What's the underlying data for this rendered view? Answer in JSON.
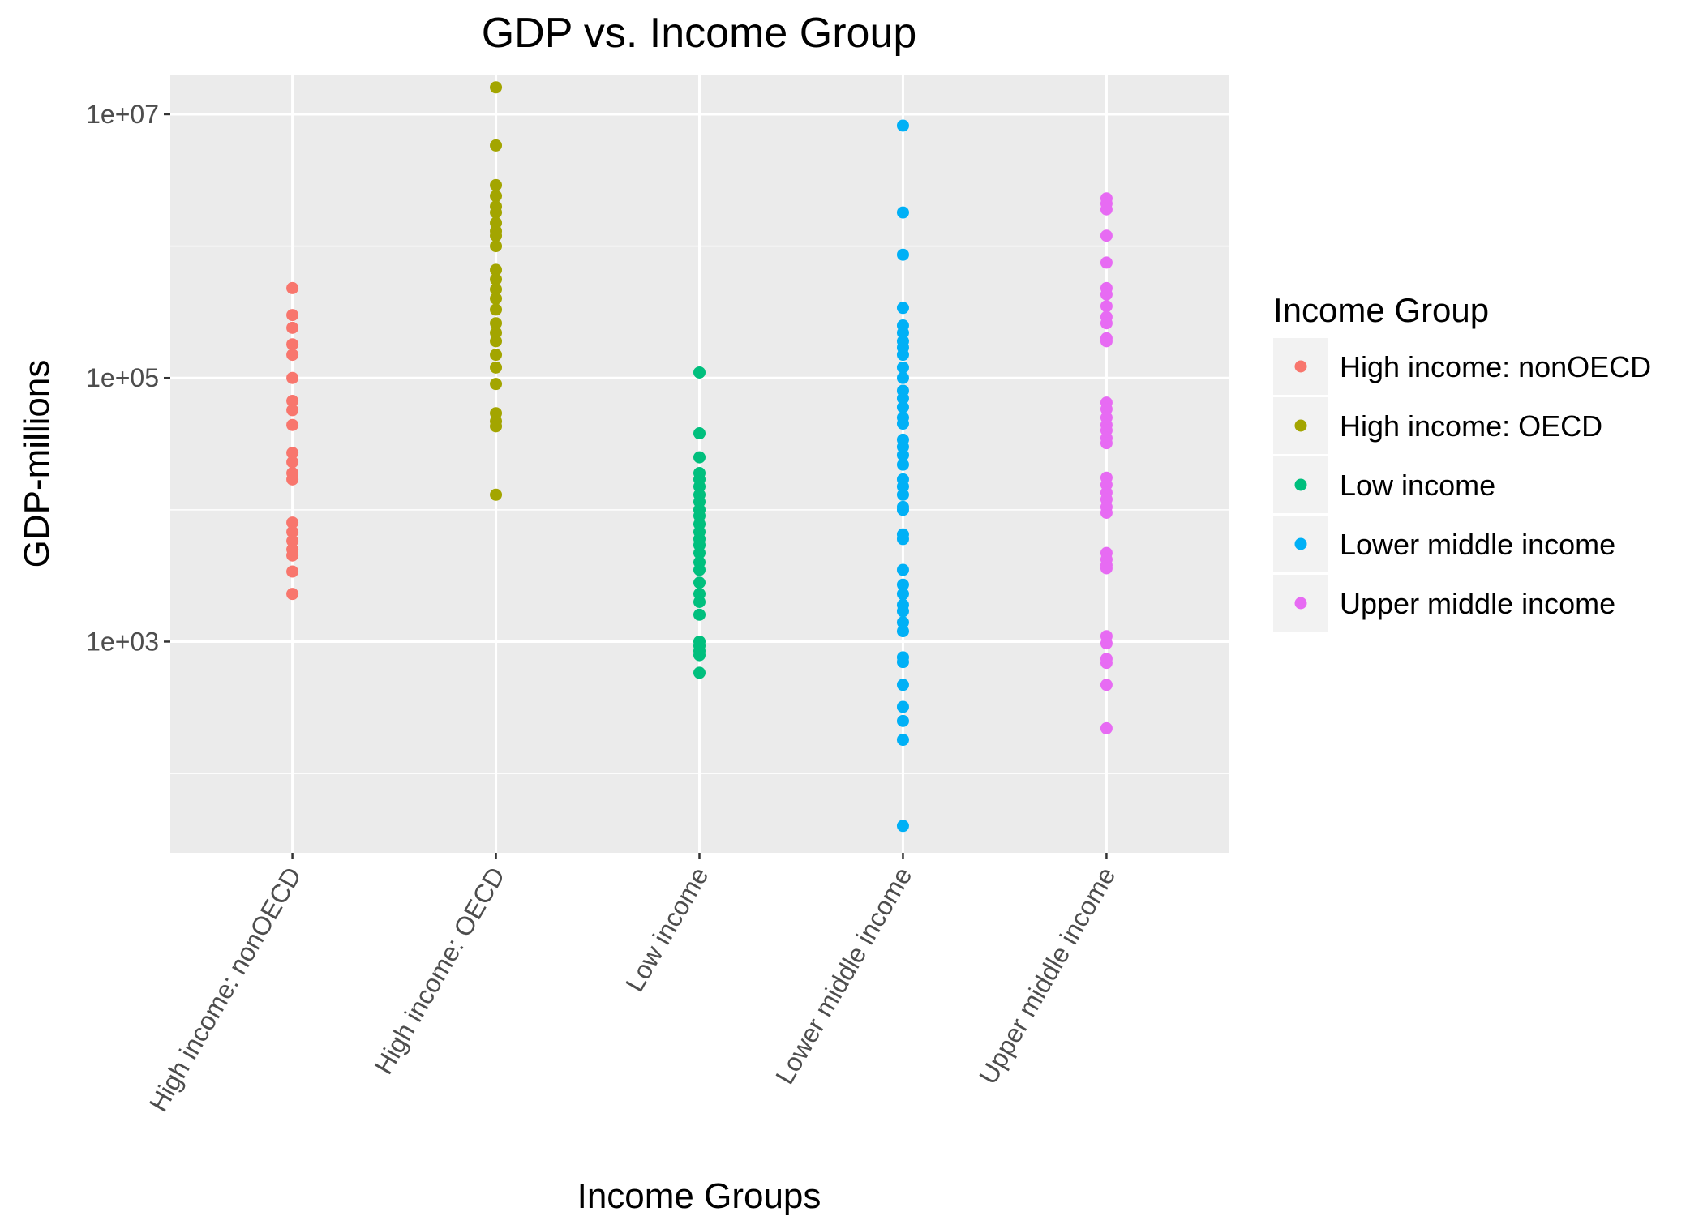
{
  "chart_data": {
    "type": "scatter",
    "title": "GDP vs. Income Group",
    "xlabel": "Income Groups",
    "ylabel": "GDP-millions",
    "y_scale": "log10",
    "categories": [
      "High income: nonOECD",
      "High income: OECD",
      "Low income",
      "Lower middle income",
      "Upper middle income"
    ],
    "y_ticks": [
      1000,
      100000,
      10000000
    ],
    "y_tick_labels": [
      "1e+03",
      "1e+05",
      "1e+07"
    ],
    "ylim": [
      25,
      20000000
    ],
    "grid": true,
    "legend": {
      "title": "Income Group",
      "position": "right"
    },
    "series": [
      {
        "name": "High income: nonOECD",
        "color": "#F8766D",
        "values": [
          480000,
          300000,
          240000,
          180000,
          150000,
          100000,
          67000,
          57000,
          44000,
          27000,
          23000,
          19000,
          17000,
          8000,
          6800,
          5800,
          5000,
          4500,
          3400,
          2300
        ]
      },
      {
        "name": "High income: OECD",
        "color": "#A3A500",
        "values": [
          16000000,
          5800000,
          2900000,
          2400000,
          2000000,
          1800000,
          1500000,
          1300000,
          1200000,
          1000000,
          660000,
          560000,
          470000,
          400000,
          330000,
          260000,
          220000,
          190000,
          150000,
          120000,
          90000,
          54000,
          47000,
          43000,
          13000
        ]
      },
      {
        "name": "Low income",
        "color": "#00BF7D",
        "values": [
          110000,
          38000,
          25000,
          19000,
          17000,
          15000,
          13000,
          11500,
          10000,
          9000,
          7800,
          6800,
          6000,
          5400,
          4700,
          4000,
          3500,
          2800,
          2300,
          2000,
          1600,
          1000,
          930,
          850,
          790,
          580
        ]
      },
      {
        "name": "Lower middle income",
        "color": "#00B0F6",
        "values": [
          8200000,
          1800000,
          860000,
          340000,
          250000,
          220000,
          190000,
          170000,
          150000,
          120000,
          100000,
          80000,
          70000,
          60000,
          50000,
          45000,
          34000,
          30000,
          26000,
          22000,
          17000,
          15000,
          13000,
          10500,
          10000,
          6500,
          6000,
          3500,
          2700,
          2300,
          1900,
          1700,
          1400,
          1200,
          760,
          700,
          470,
          320,
          250,
          180,
          40
        ]
      },
      {
        "name": "Upper middle income",
        "color": "#E76BF3",
        "values": [
          2300000,
          2100000,
          1900000,
          1200000,
          750000,
          480000,
          430000,
          350000,
          290000,
          260000,
          200000,
          190000,
          65000,
          58000,
          50000,
          44000,
          40000,
          35000,
          32000,
          17500,
          15500,
          13500,
          12000,
          10500,
          9500,
          4700,
          4200,
          3800,
          3600,
          1100,
          970,
          740,
          690,
          470,
          220
        ]
      }
    ]
  }
}
